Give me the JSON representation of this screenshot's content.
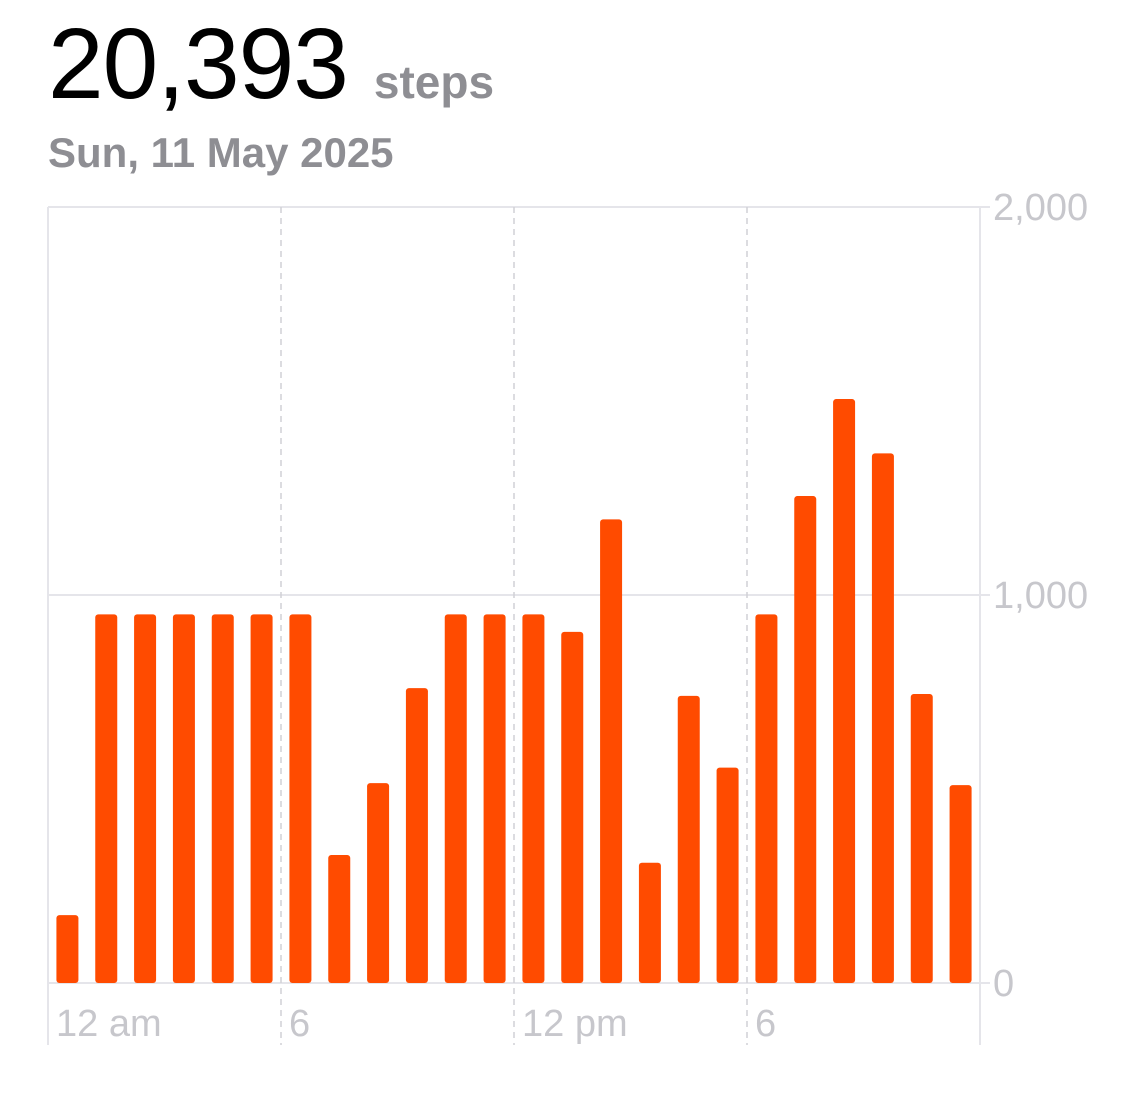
{
  "header": {
    "total": "20,393",
    "unit": "steps",
    "date": "Sun, 11 May 2025"
  },
  "colors": {
    "bar": "#ff4b00",
    "grid": "#e5e5ea",
    "axis_text": "#c7c7cc"
  },
  "chart_data": {
    "type": "bar",
    "title": "",
    "xlabel": "",
    "ylabel": "",
    "hours": [
      0,
      1,
      2,
      3,
      4,
      5,
      6,
      7,
      8,
      9,
      10,
      11,
      12,
      13,
      14,
      15,
      16,
      17,
      18,
      19,
      20,
      21,
      22,
      23
    ],
    "values": [
      175,
      950,
      950,
      950,
      950,
      950,
      950,
      330,
      515,
      760,
      950,
      950,
      950,
      905,
      1195,
      310,
      740,
      555,
      950,
      1255,
      1505,
      1365,
      745,
      510
    ],
    "ylim": [
      0,
      2000
    ],
    "y_ticks": [
      {
        "value": 0,
        "label": "0"
      },
      {
        "value": 1000,
        "label": "1,000"
      },
      {
        "value": 2000,
        "label": "2,000"
      }
    ],
    "x_ticks": [
      {
        "hour": 0,
        "label": "12 am"
      },
      {
        "hour": 6,
        "label": "6"
      },
      {
        "hour": 12,
        "label": "12 pm"
      },
      {
        "hour": 18,
        "label": "6"
      }
    ],
    "y_axis_position": "right",
    "grid": true
  }
}
